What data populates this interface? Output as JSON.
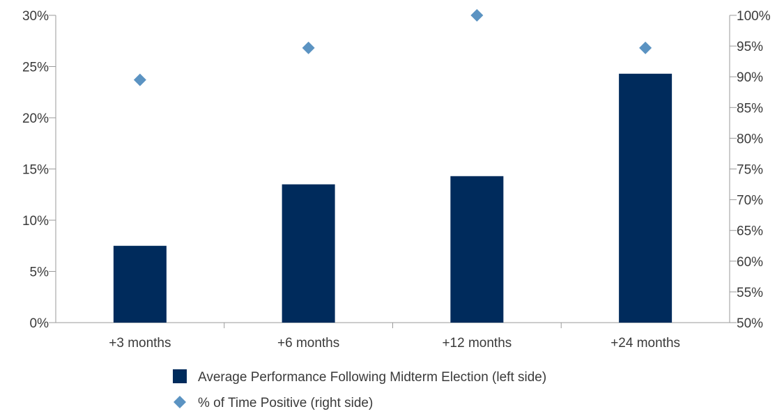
{
  "chart_data": {
    "type": "bar",
    "categories": [
      "+3 months",
      "+6 months",
      "+12 months",
      "+24 months"
    ],
    "series": [
      {
        "name": "Average Performance Following Midterm Election (left side)",
        "kind": "bar",
        "axis": "left",
        "values": [
          7.5,
          13.5,
          14.3,
          24.3
        ],
        "color": "#002b5c"
      },
      {
        "name": "% of Time Positive (right side)",
        "kind": "scatter",
        "marker": "diamond",
        "axis": "right",
        "values": [
          89.5,
          94.7,
          100,
          94.7
        ],
        "color": "#5b93c2"
      }
    ],
    "y_left": {
      "lim": [
        0,
        30
      ],
      "ticks": [
        0,
        5,
        10,
        15,
        20,
        25,
        30
      ],
      "tick_labels": [
        "0%",
        "5%",
        "10%",
        "15%",
        "20%",
        "25%",
        "30%"
      ]
    },
    "y_right": {
      "lim": [
        50,
        100
      ],
      "ticks": [
        50,
        55,
        60,
        65,
        70,
        75,
        80,
        85,
        90,
        95,
        100
      ],
      "tick_labels": [
        "50%",
        "55%",
        "60%",
        "65%",
        "70%",
        "75%",
        "80%",
        "85%",
        "90%",
        "95%",
        "100%"
      ]
    },
    "grid": false,
    "legend_position": "bottom",
    "axis_color": "#9a9a9a"
  }
}
